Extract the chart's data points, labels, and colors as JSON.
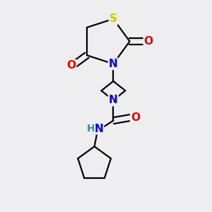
{
  "bg_color": "#eeeef0",
  "atom_colors": {
    "C": "#000000",
    "N": "#0000ee",
    "O": "#ee0000",
    "S": "#cccc00",
    "H": "#448888"
  },
  "bond_color": "#000000",
  "bond_width": 1.6,
  "figsize": [
    3.0,
    3.0
  ],
  "dpi": 100,
  "xlim": [
    -2.2,
    2.2
  ],
  "ylim": [
    -3.8,
    2.8
  ]
}
